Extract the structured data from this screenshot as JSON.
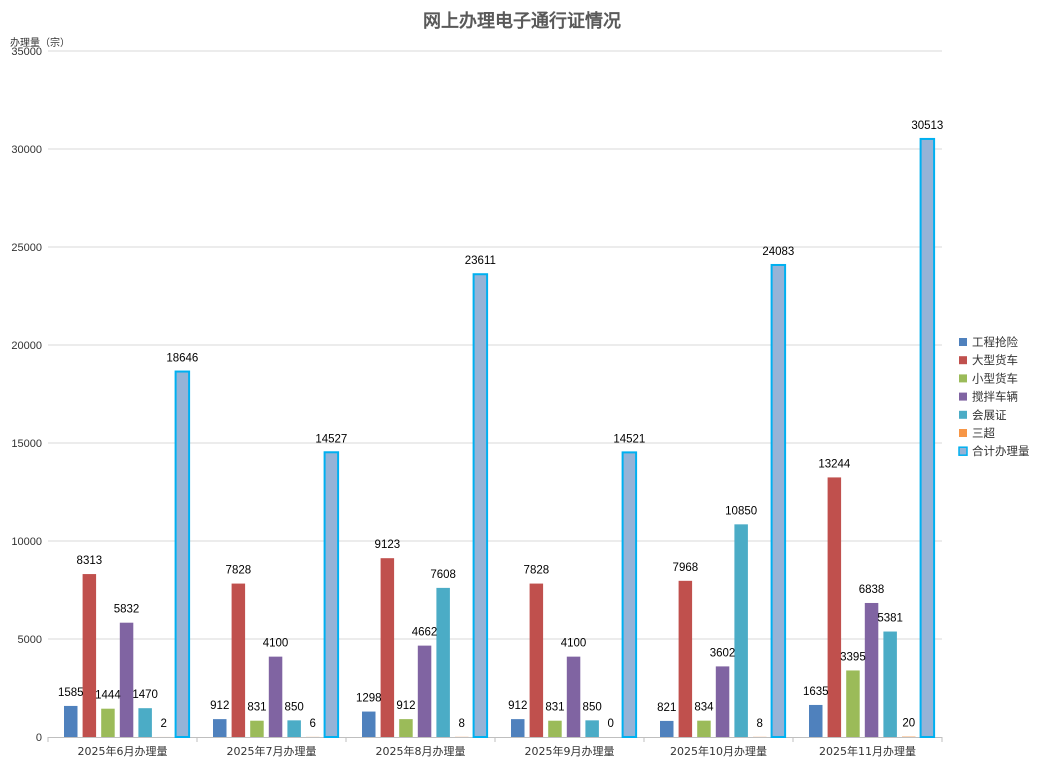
{
  "chart_data": {
    "type": "bar",
    "title": "网上办理电子通行证情况",
    "ylabel": "办理量（宗）",
    "xlabel": "",
    "ylim": [
      0,
      35000
    ],
    "yticks": [
      "0",
      "5000",
      "10000",
      "15000",
      "20000",
      "25000",
      "30000",
      "35000"
    ],
    "ytick_values": [
      0,
      5000,
      10000,
      15000,
      20000,
      25000,
      30000,
      35000
    ],
    "grid": true,
    "legend_position": "right",
    "categories": [
      "2025年6月办理量",
      "2025年7月办理量",
      "2025年8月办理量",
      "2025年9月办理量",
      "2025年10月办理量",
      "2025年11月办理量"
    ],
    "series": [
      {
        "name": "工程抢险",
        "color": "#4F81BD",
        "values": [
          1585,
          912,
          1298,
          912,
          821,
          1635
        ]
      },
      {
        "name": "大型货车",
        "color": "#C0504D",
        "values": [
          8313,
          7828,
          9123,
          7828,
          7968,
          13244
        ]
      },
      {
        "name": "小型货车",
        "color": "#9BBB59",
        "values": [
          1444,
          831,
          912,
          831,
          834,
          3395
        ]
      },
      {
        "name": "搅拌车辆",
        "color": "#8064A2",
        "values": [
          5832,
          4100,
          4662,
          4100,
          3602,
          6838
        ]
      },
      {
        "name": "会展证",
        "color": "#4BACC6",
        "values": [
          1470,
          850,
          7608,
          850,
          10850,
          5381
        ]
      },
      {
        "name": "三超",
        "color": "#F79646",
        "values": [
          2,
          6,
          8,
          0,
          8,
          20
        ]
      },
      {
        "name": "合计办理量",
        "color": "#95B3D7",
        "edge_color": "#00B0F0",
        "values": [
          18646,
          14527,
          23611,
          14521,
          24083,
          30513
        ]
      }
    ]
  }
}
